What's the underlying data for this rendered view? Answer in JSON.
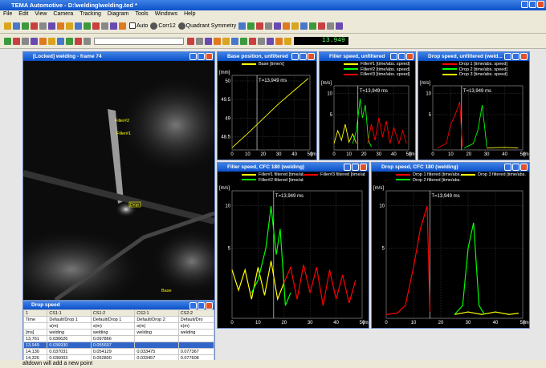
{
  "window": {
    "title": "TEMA Automotive - D:\\welding\\welding.ted *"
  },
  "menu": [
    "File",
    "Edit",
    "View",
    "Camera",
    "Tracking",
    "Diagram",
    "Tools",
    "Windows",
    "Help"
  ],
  "toolbar": {
    "auto": "Auto",
    "corr": "Corr12",
    "symmetry": "Quadrant Symmetry",
    "time": "13.949"
  },
  "image_window": {
    "title": "[Locked] welding - frame 74",
    "labels": [
      "Filler#2",
      "Filler#1",
      "Drop",
      "Base"
    ]
  },
  "table": {
    "title": "Drop speed",
    "columns": [
      "1",
      "CS1:1",
      "CS1:2",
      "CS2:1",
      "CS2:2"
    ],
    "rows": [
      [
        "Time",
        "Default/Drop 1",
        "Default/Drop 1",
        "Default/Drop 2",
        "Default/Dro"
      ],
      [
        "",
        "s(m)",
        "s(m)",
        "s(m)",
        "s(m)"
      ],
      [
        "[ms]",
        "welding",
        "welding",
        "welding",
        "welding"
      ],
      [
        "13,761",
        "0.036626",
        "0.097866",
        "",
        ""
      ],
      [
        "13,949",
        "0.036930",
        "0.055697",
        "",
        ""
      ],
      [
        "14,130",
        "0.037031",
        "0.054129",
        "0.033475",
        "0.077367"
      ],
      [
        "14,326",
        "0.036003",
        "0.052800",
        "0.033457",
        "0.077608"
      ]
    ]
  },
  "diagrams": [
    {
      "title": "Base position, unfiltered",
      "legend": [
        "Base [time/x]"
      ],
      "unit": "[mm]",
      "cursor": "T=13,949 ms",
      "yticks": [
        "50",
        "49.5",
        "49",
        "48.5"
      ],
      "xticks": [
        "0",
        "10",
        "20",
        "30",
        "40",
        "50"
      ],
      "xunit": "[ms]"
    },
    {
      "title": "Filler speed, unfiltered",
      "legend": [
        "Filler#1 [time/abs. speed]",
        "Filler#2 [time/abs. speed]",
        "Filler#3 [time/abs. speed]"
      ],
      "unit": "[m/s]",
      "cursor": "T=13,949 ms",
      "yticks": [
        "10",
        "5"
      ],
      "xticks": [
        "0",
        "10",
        "20",
        "30",
        "40",
        "50"
      ],
      "xunit": "[ms]"
    },
    {
      "title": "Drop speed, unfiltered (weld...",
      "legend": [
        "Drop 1 [time/abs. speed]",
        "Drop 2 [time/abs. speed]",
        "Drop 3 [time/abs. speed]"
      ],
      "unit": "[m/s]",
      "cursor": "T=13,949 ms",
      "yticks": [
        "10",
        "5"
      ],
      "xticks": [
        "0",
        "10",
        "20",
        "30",
        "40",
        "50"
      ],
      "xunit": "[ms]"
    },
    {
      "title": "Filler speed, CFC 180 (welding)",
      "legend": [
        "Filler#1 filtered [time/abs. speed]",
        "Filler#3 filtered [time/abs. speed]",
        "Filler#2 filtered [time/abs. speed]"
      ],
      "unit": "[m/s]",
      "cursor": "T=13,949 ms",
      "yticks": [
        "10",
        "5"
      ],
      "xticks": [
        "0",
        "10",
        "20",
        "30",
        "40",
        "50"
      ],
      "xunit": "[ms]"
    },
    {
      "title": "Drop speed, CFC 180 (welding)",
      "legend": [
        "Drop 1 filtered [time/abs. speed]",
        "Drop 3 filtered [time/abs. speed]",
        "Drop 2 filtered [time/abs. speed]"
      ],
      "unit": "[m/s]",
      "cursor": "T=13,949 ms",
      "yticks": [
        "10",
        "5"
      ],
      "xticks": [
        "0",
        "10",
        "20",
        "30",
        "40",
        "50"
      ],
      "xunit": "[ms]"
    }
  ],
  "status": "altdown will add a new point"
}
